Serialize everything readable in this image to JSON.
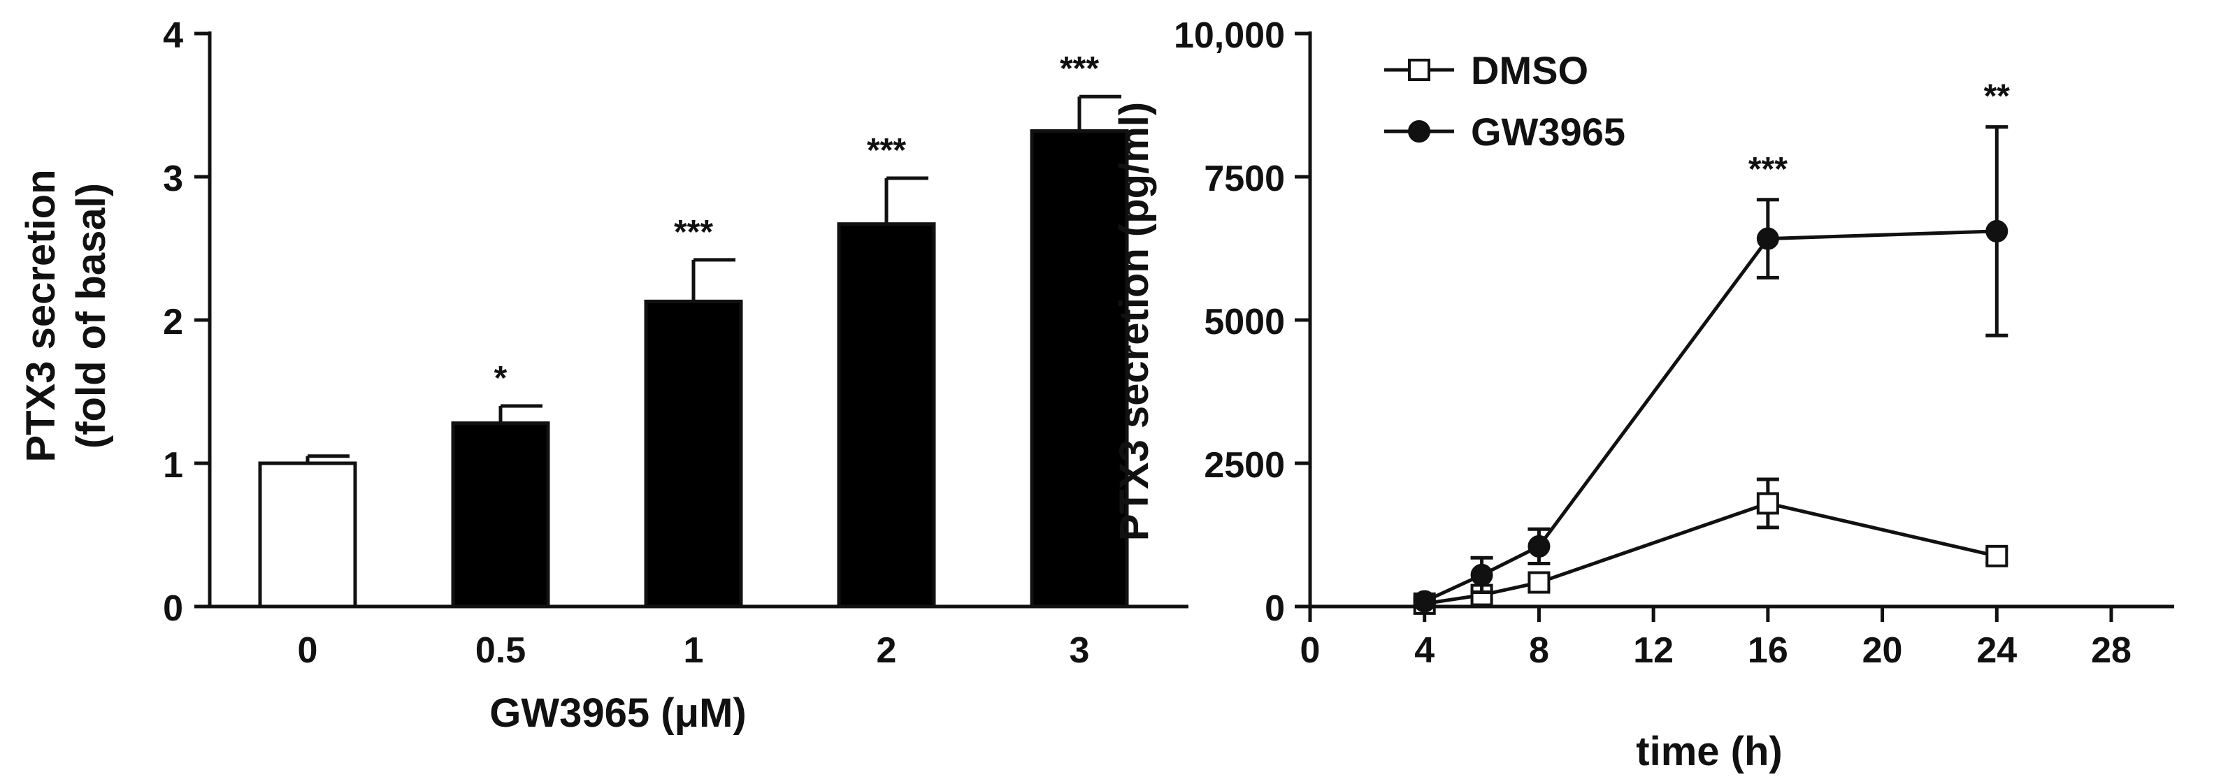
{
  "chart_data": [
    {
      "type": "bar",
      "xlabel": "GW3965 (μM)",
      "ylabel_lines": [
        "PTX3 secretion",
        "(fold of basal)"
      ],
      "ylim": [
        0,
        4
      ],
      "yticks": [
        0,
        1,
        2,
        3,
        4
      ],
      "categories": [
        "0",
        "0.5",
        "1",
        "2",
        "3"
      ],
      "values": [
        1.0,
        1.28,
        2.13,
        2.67,
        3.32
      ],
      "errors": [
        0.05,
        0.12,
        0.29,
        0.32,
        0.24
      ],
      "significance": [
        "",
        "*",
        "***",
        "***",
        "***"
      ],
      "bar_fills": [
        "#ffffff",
        "#000000",
        "#000000",
        "#000000",
        "#000000"
      ],
      "grid": false
    },
    {
      "type": "line",
      "xlabel": "time (h)",
      "ylabel": "PTX3 secretion (pg/ml)",
      "xlim": [
        0,
        28
      ],
      "ylim": [
        0,
        10000
      ],
      "xticks": [
        0,
        4,
        8,
        12,
        16,
        20,
        24,
        28
      ],
      "yticks": [
        0,
        2500,
        5000,
        7500,
        10000
      ],
      "ytick_labels": [
        "0",
        "2500",
        "5000",
        "7500",
        "10,000"
      ],
      "legend_position": "top-left",
      "grid": false,
      "series": [
        {
          "name": "DMSO",
          "marker": "open-square",
          "x": [
            4,
            6,
            8,
            16,
            24
          ],
          "y": [
            50,
            200,
            420,
            1800,
            880
          ],
          "errors": [
            60,
            80,
            120,
            420,
            120
          ]
        },
        {
          "name": "GW3965",
          "marker": "filled-circle",
          "x": [
            4,
            6,
            8,
            16,
            24
          ],
          "y": [
            90,
            550,
            1050,
            6420,
            6550
          ],
          "errors": [
            60,
            300,
            300,
            680,
            1820
          ]
        }
      ],
      "annotations": [
        {
          "x": 16,
          "label": "***"
        },
        {
          "x": 24,
          "label": "**"
        }
      ]
    }
  ]
}
